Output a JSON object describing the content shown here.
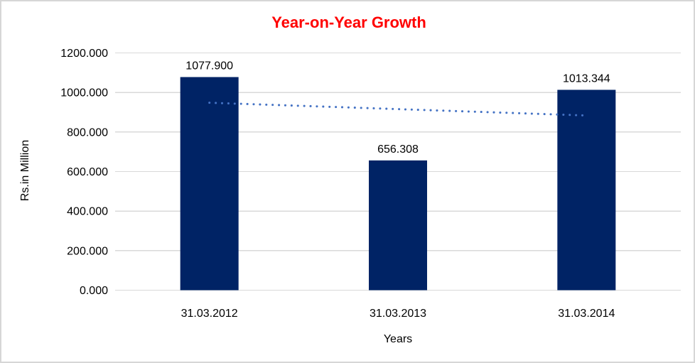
{
  "frame": {
    "background": "#ffffff",
    "border_color": "#d6d6d6"
  },
  "chart_data": {
    "type": "bar",
    "title": "Year-on-Year Growth",
    "title_color": "#ff0000",
    "xlabel": "Years",
    "ylabel": "Rs.in Million",
    "categories": [
      "31.03.2012",
      "31.03.2013",
      "31.03.2014"
    ],
    "values": [
      1077.9,
      656.308,
      1013.344
    ],
    "bar_labels": [
      "1077.900",
      "656.308",
      "1013.344"
    ],
    "bar_color": "#002365",
    "ylim": [
      0,
      1200
    ],
    "yticks": [
      0,
      200,
      400,
      600,
      800,
      1000,
      1200
    ],
    "ytick_labels": [
      "0.000",
      "200.000",
      "400.000",
      "600.000",
      "800.000",
      "1000.000",
      "1200.000"
    ],
    "grid": true,
    "gridline_color": "#d9d9d9",
    "text_color": "#000000",
    "legend": "none",
    "trendline": {
      "style": "dotted",
      "color": "#4472c4",
      "start_value": 948.1,
      "end_value": 883.6
    }
  }
}
